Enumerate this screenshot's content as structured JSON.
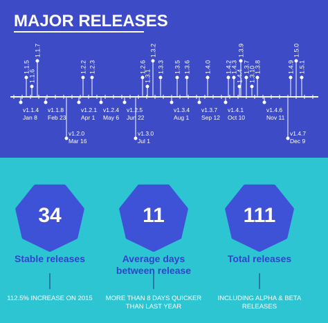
{
  "title": "MAJOR RELEASES",
  "upper_releases": [
    "1.1.5",
    "1.1.6",
    "1.1.7",
    "1.2.2",
    "1.2.3",
    "1.2.6",
    "1.3.1",
    "1.3.2",
    "1.3.3",
    "1.3.5",
    "1.3.6",
    "1.4.0",
    "1.4.2",
    "1.4.3",
    "1.4.4",
    "1.3.9",
    "1.3.7",
    "1.3.10",
    "1.3.8",
    "1.4.9",
    "1.5.0",
    "1.5.1"
  ],
  "lower_releases": [
    {
      "version": "v1.1.4",
      "date": "Jan 8"
    },
    {
      "version": "v1.1.8",
      "date": "Feb 23"
    },
    {
      "version": "v1.2.0",
      "date": "Mar 16"
    },
    {
      "version": "v1.2.1",
      "date": "Apr 1"
    },
    {
      "version": "v1.2.4",
      "date": "May 6"
    },
    {
      "version": "v1.2.5",
      "date": "Jun 22"
    },
    {
      "version": "v1.3.0",
      "date": "Jul 1"
    },
    {
      "version": "v1.3.4",
      "date": "Aug 1"
    },
    {
      "version": "v1.3.7",
      "date": "Sep 12"
    },
    {
      "version": "v1.4.1",
      "date": "Oct 10"
    },
    {
      "version": "v1.4.6",
      "date": "Nov 11"
    },
    {
      "version": "v1.4.7",
      "date": "Dec 9"
    }
  ],
  "stats": [
    {
      "value": 34,
      "label": "Stable releases",
      "note": "112.5% INCREASE ON 2015"
    },
    {
      "value": 11,
      "label": "Average days between release",
      "note": "MORE THAN 8 DAYS QUICKER THAN LAST YEAR"
    },
    {
      "value": 111,
      "label": "Total releases",
      "note": "INCLUDING ALPHA & BETA RELEASES"
    }
  ]
}
